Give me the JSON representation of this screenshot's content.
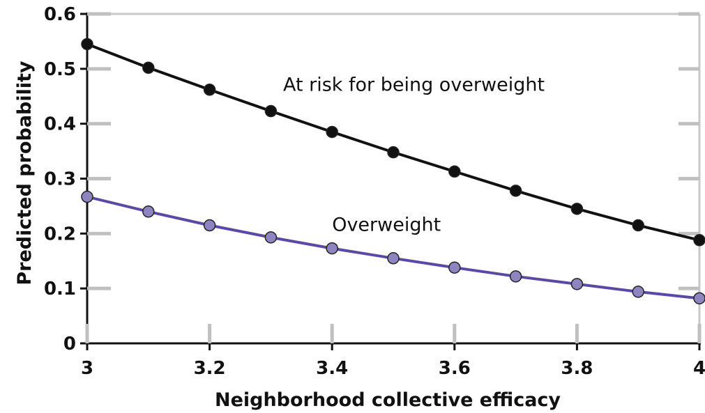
{
  "chart_data": {
    "type": "line",
    "title": "",
    "xlabel": "Neighborhood collective efficacy",
    "ylabel": "Predicted probability",
    "xlim": [
      3,
      4
    ],
    "ylim": [
      0,
      0.6
    ],
    "xticks": [
      "3",
      "3.2",
      "3.4",
      "3.6",
      "3.8",
      "4"
    ],
    "yticks": [
      "0",
      "0.1",
      "0.2",
      "0.3",
      "0.4",
      "0.5",
      "0.6"
    ],
    "grid": "horizontal ticks only",
    "x": [
      3.0,
      3.1,
      3.2,
      3.3,
      3.4,
      3.5,
      3.6,
      3.7,
      3.8,
      3.9,
      4.0
    ],
    "series": [
      {
        "name": "At risk for being overweight",
        "color": "#111111",
        "marker_color": "#111111",
        "values": [
          0.545,
          0.502,
          0.462,
          0.423,
          0.385,
          0.348,
          0.313,
          0.278,
          0.245,
          0.215,
          0.188
        ]
      },
      {
        "name": "Overweight",
        "color": "#5b4aa5",
        "marker_color": "#8e84c0",
        "values": [
          0.267,
          0.24,
          0.215,
          0.193,
          0.173,
          0.155,
          0.138,
          0.122,
          0.108,
          0.094,
          0.082
        ]
      }
    ]
  }
}
